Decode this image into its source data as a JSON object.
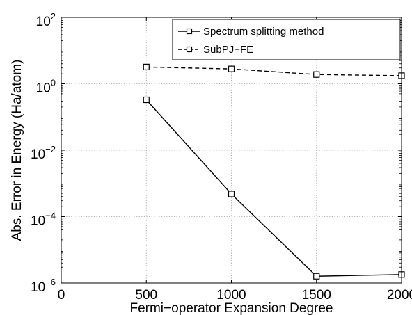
{
  "chart_data": {
    "type": "line",
    "xlabel": "Fermi−operator Expansion Degree",
    "ylabel": "Abs. Error in Energy (Ha/atom)",
    "xlim": [
      0,
      2000
    ],
    "ylim": [
      1e-06,
      100
    ],
    "yscale": "log",
    "grid": true,
    "legend_position": "top-right",
    "x_ticks": [
      "0",
      "500",
      "1000",
      "1500",
      "2000"
    ],
    "y_ticks": [
      {
        "base": "10",
        "exp": "−6",
        "value": 1e-06
      },
      {
        "base": "10",
        "exp": "−4",
        "value": 0.0001
      },
      {
        "base": "10",
        "exp": "−2",
        "value": 0.01
      },
      {
        "base": "10",
        "exp": "0",
        "value": 1
      },
      {
        "base": "10",
        "exp": "2",
        "value": 100
      }
    ],
    "series": [
      {
        "name": "Spectrum splitting method",
        "line_style": "solid",
        "marker": "square",
        "color": "#000000",
        "x": [
          500,
          1000,
          1500,
          2000
        ],
        "y": [
          0.33,
          0.00048,
          1.6e-06,
          1.8e-06
        ]
      },
      {
        "name": "SubPJ−FE",
        "line_style": "dashed",
        "marker": "square",
        "color": "#000000",
        "x": [
          500,
          1000,
          1500,
          2000
        ],
        "y": [
          3.2,
          2.8,
          1.9,
          1.75
        ]
      }
    ]
  }
}
